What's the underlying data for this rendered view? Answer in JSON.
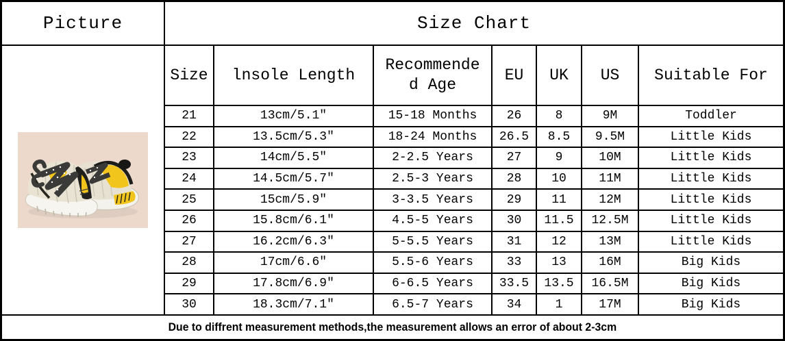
{
  "header": {
    "picture_label": "Picture",
    "title": "Size Chart"
  },
  "table": {
    "columns": [
      "Size",
      "lnsole Length",
      "Recommende\nd Age",
      "EU",
      "UK",
      "US",
      "Suitable For"
    ],
    "rows": [
      [
        "21",
        "13cm/5.1″",
        "15-18 Months",
        "26",
        "8",
        "9M",
        "Toddler"
      ],
      [
        "22",
        "13.5cm/5.3″",
        "18-24 Months",
        "26.5",
        "8.5",
        "9.5M",
        "Little Kids"
      ],
      [
        "23",
        "14cm/5.5″",
        "2-2.5 Years",
        "27",
        "9",
        "10M",
        "Little Kids"
      ],
      [
        "24",
        "14.5cm/5.7″",
        "2.5-3 Years",
        "28",
        "10",
        "11M",
        "Little Kids"
      ],
      [
        "25",
        "15cm/5.9″",
        "3-3.5 Years",
        "29",
        "11",
        "12M",
        "Little Kids"
      ],
      [
        "26",
        "15.8cm/6.1″",
        "4.5-5 Years",
        "30",
        "11.5",
        "12.5M",
        "Little Kids"
      ],
      [
        "27",
        "16.2cm/6.3″",
        "5-5.5 Years",
        "31",
        "12",
        "13M",
        "Little Kids"
      ],
      [
        "28",
        "17cm/6.6″",
        "5.5-6 Years",
        "33",
        "13",
        "16M",
        "Big Kids"
      ],
      [
        "29",
        "17.8cm/6.9″",
        "6-6.5 Years",
        "33.5",
        "13.5",
        "16.5M",
        "Big Kids"
      ],
      [
        "30",
        "18.3cm/7.1″",
        "6.5-7 Years",
        "34",
        "1",
        "17M",
        "Big Kids"
      ]
    ]
  },
  "note": "Due to diffrent measurement methods,the measurement allows an error of about 2-3cm",
  "picture": {
    "description": "pair of beige-yellow-black knit toddler sneakers on pink background",
    "colors": {
      "photo_background": "#ecd9cc",
      "accent_yellow": "#f2c51d",
      "knit_beige": "#e8e2d3",
      "sole_white": "#f6f4ee",
      "trim_black": "#1d1d1b"
    }
  }
}
